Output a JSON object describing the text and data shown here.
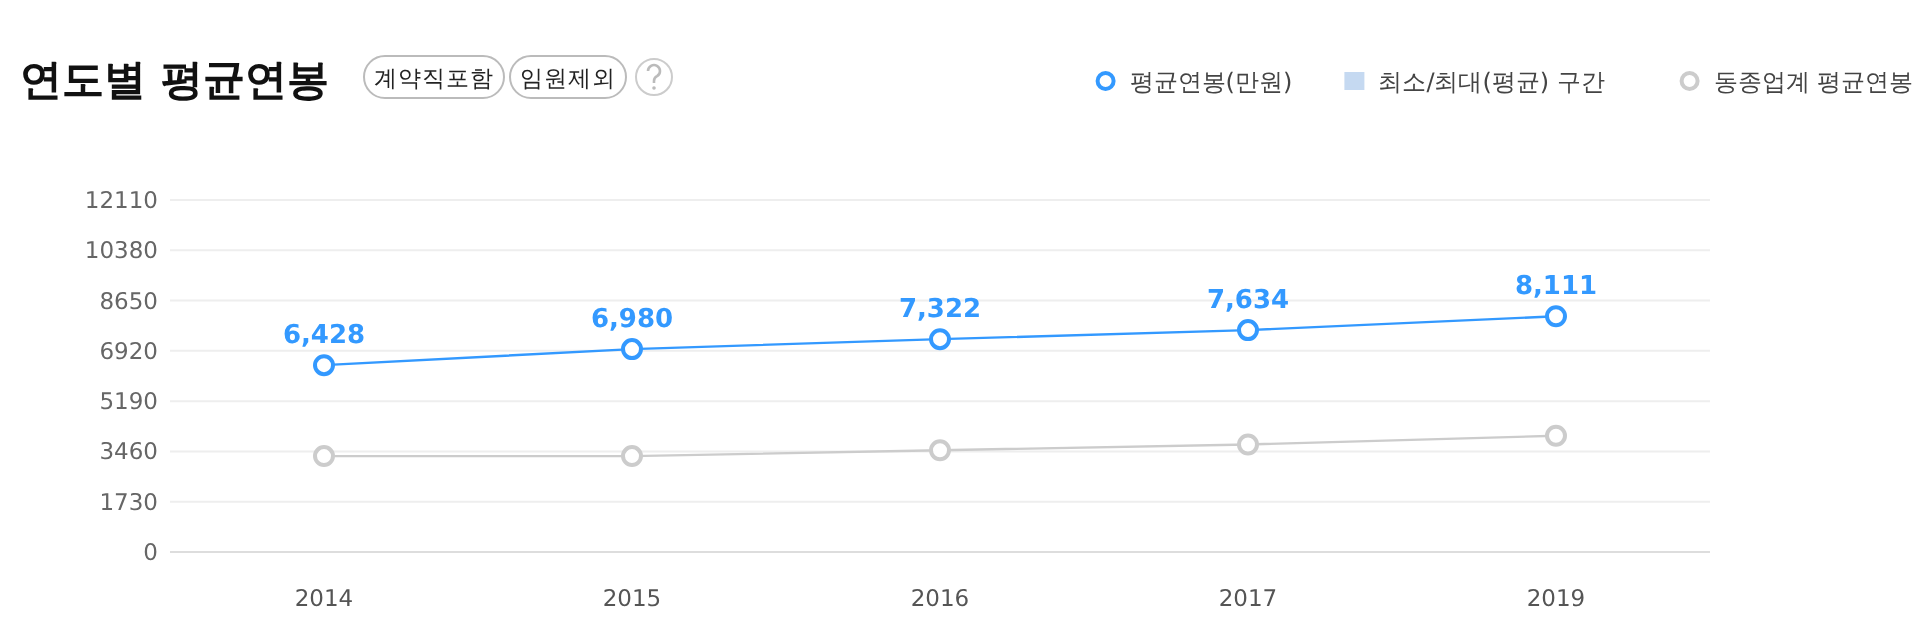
{
  "chart_data": {
    "type": "line",
    "title": "연도별 평균연봉",
    "annotations": [
      "계약직포함",
      "임원제외"
    ],
    "categories": [
      "2014",
      "2015",
      "2016",
      "2017",
      "2019"
    ],
    "series": [
      {
        "name": "평균연봉(만원)",
        "color": "#3399ff",
        "values": [
          6428,
          6980,
          7322,
          7634,
          8111
        ],
        "value_labels": [
          "6,428",
          "6,980",
          "7,322",
          "7,634",
          "8,111"
        ],
        "marker": "circle"
      },
      {
        "name": "최소/최대(평균) 구간",
        "type": "area",
        "color": "#c5d9f1",
        "values": [
          null,
          null,
          null,
          null,
          null
        ]
      },
      {
        "name": "동종업계 평균연봉",
        "color": "#cccccc",
        "values": [
          3300,
          3300,
          3500,
          3700,
          4000
        ],
        "marker": "circle"
      }
    ],
    "ylim": [
      0,
      12110
    ],
    "yticks": [
      0,
      1730,
      3460,
      5190,
      6920,
      8650,
      10380,
      12110
    ],
    "grid": "y",
    "legend": "top right"
  }
}
